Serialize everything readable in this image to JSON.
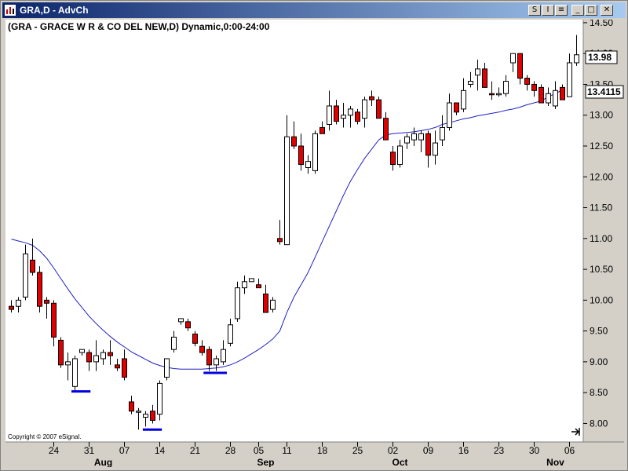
{
  "window": {
    "title": "GRA,D - AdvCh",
    "buttons": [
      {
        "name": "symbol-sync-button",
        "glyph": "S"
      },
      {
        "name": "interval-sync-button",
        "glyph": "I"
      },
      {
        "name": "link-button",
        "glyph": "≡"
      },
      {
        "name": "minimize-button",
        "glyph": "_"
      },
      {
        "name": "maximize-button",
        "glyph": "□"
      },
      {
        "name": "close-button",
        "glyph": "✕"
      }
    ]
  },
  "chart_data": {
    "type": "candlestick",
    "title": "(GRA - GRACE W R & CO DEL NEW,D) Dynamic,0:00-24:00",
    "copyright": "Copyright © 2007 eSignal.",
    "ylim": [
      7.7,
      14.55
    ],
    "yticks": [
      "14.50",
      "14.00",
      "13.50",
      "13.00",
      "12.50",
      "12.00",
      "11.50",
      "11.00",
      "10.50",
      "10.00",
      "9.50",
      "9.00",
      "8.50",
      "8.00"
    ],
    "last_price_label": "13.98",
    "ma_value_label": "13.4115",
    "xticks": [
      {
        "label": "24",
        "i": 6
      },
      {
        "label": "31",
        "i": 11
      },
      {
        "label": "07",
        "i": 16
      },
      {
        "label": "14",
        "i": 21
      },
      {
        "label": "21",
        "i": 26
      },
      {
        "label": "28",
        "i": 31
      },
      {
        "label": "05",
        "i": 35
      },
      {
        "label": "11",
        "i": 39
      },
      {
        "label": "18",
        "i": 44
      },
      {
        "label": "25",
        "i": 49
      },
      {
        "label": "02",
        "i": 54
      },
      {
        "label": "09",
        "i": 59
      },
      {
        "label": "16",
        "i": 64
      },
      {
        "label": "23",
        "i": 69
      },
      {
        "label": "30",
        "i": 74
      },
      {
        "label": "06",
        "i": 79
      }
    ],
    "months": [
      {
        "label": "Aug",
        "i": 13
      },
      {
        "label": "Sep",
        "i": 36
      },
      {
        "label": "Oct",
        "i": 55
      },
      {
        "label": "Nov",
        "i": 77
      }
    ],
    "candles": [
      [
        9.85,
        10.0,
        9.8,
        9.9,
        "down"
      ],
      [
        9.9,
        10.05,
        9.8,
        10.0,
        "up"
      ],
      [
        10.05,
        10.9,
        10.0,
        10.75,
        "up"
      ],
      [
        10.65,
        11.0,
        10.4,
        10.45,
        "down"
      ],
      [
        10.45,
        10.55,
        9.8,
        9.9,
        "down"
      ],
      [
        10.0,
        10.05,
        9.7,
        9.95,
        "down"
      ],
      [
        9.95,
        10.0,
        9.25,
        9.4,
        "down"
      ],
      [
        9.35,
        9.4,
        8.9,
        8.95,
        "down"
      ],
      [
        9.0,
        9.15,
        8.7,
        8.95,
        "up"
      ],
      [
        8.6,
        9.1,
        8.5,
        9.05,
        "up"
      ],
      [
        9.15,
        9.2,
        9.1,
        9.2,
        "up"
      ],
      [
        9.15,
        9.2,
        8.85,
        9.0,
        "down"
      ],
      [
        9.0,
        9.35,
        8.85,
        9.1,
        "up"
      ],
      [
        9.05,
        9.2,
        8.95,
        9.15,
        "up"
      ],
      [
        9.15,
        9.35,
        8.95,
        9.1,
        "down"
      ],
      [
        8.95,
        9.05,
        8.85,
        8.9,
        "down"
      ],
      [
        9.05,
        9.2,
        8.7,
        8.75,
        "down"
      ],
      [
        8.35,
        8.45,
        8.15,
        8.2,
        "down"
      ],
      [
        8.2,
        8.25,
        7.9,
        8.2,
        "up"
      ],
      [
        8.15,
        8.2,
        7.95,
        8.1,
        "up"
      ],
      [
        8.2,
        8.3,
        8.0,
        8.05,
        "down"
      ],
      [
        8.15,
        8.7,
        8.05,
        8.65,
        "up"
      ],
      [
        8.75,
        9.05,
        8.7,
        9.05,
        "up"
      ],
      [
        9.2,
        9.5,
        9.15,
        9.4,
        "up"
      ],
      [
        9.65,
        9.7,
        9.6,
        9.7,
        "up"
      ],
      [
        9.65,
        9.7,
        9.5,
        9.55,
        "down"
      ],
      [
        9.45,
        9.5,
        9.25,
        9.3,
        "down"
      ],
      [
        9.25,
        9.35,
        9.1,
        9.15,
        "down"
      ],
      [
        9.2,
        9.25,
        8.85,
        8.95,
        "down"
      ],
      [
        8.95,
        9.1,
        8.85,
        9.05,
        "up"
      ],
      [
        9.0,
        9.35,
        8.95,
        9.2,
        "up"
      ],
      [
        9.3,
        9.7,
        9.25,
        9.6,
        "up"
      ],
      [
        9.7,
        10.3,
        9.65,
        10.2,
        "up"
      ],
      [
        10.2,
        10.4,
        10.1,
        10.3,
        "up"
      ],
      [
        10.3,
        10.35,
        10.3,
        10.35,
        "up"
      ],
      [
        10.25,
        10.35,
        10.2,
        10.2,
        "down"
      ],
      [
        10.1,
        10.25,
        9.8,
        9.8,
        "down"
      ],
      [
        9.85,
        10.05,
        9.8,
        10.0,
        "up"
      ],
      [
        11.0,
        11.3,
        10.9,
        10.95,
        "down"
      ],
      [
        10.9,
        13.0,
        10.9,
        12.65,
        "up"
      ],
      [
        12.65,
        12.9,
        12.45,
        12.5,
        "down"
      ],
      [
        12.5,
        12.7,
        12.1,
        12.2,
        "down"
      ],
      [
        12.15,
        12.35,
        12.05,
        12.25,
        "up"
      ],
      [
        12.1,
        12.75,
        12.05,
        12.7,
        "up"
      ],
      [
        12.8,
        12.9,
        12.7,
        12.7,
        "down"
      ],
      [
        12.85,
        13.4,
        12.75,
        13.15,
        "up"
      ],
      [
        13.15,
        13.25,
        12.85,
        12.9,
        "down"
      ],
      [
        12.95,
        13.2,
        12.8,
        13.0,
        "up"
      ],
      [
        13.0,
        13.15,
        12.8,
        13.1,
        "up"
      ],
      [
        13.05,
        13.1,
        12.85,
        12.9,
        "down"
      ],
      [
        12.95,
        13.3,
        12.8,
        13.25,
        "up"
      ],
      [
        13.3,
        13.4,
        13.15,
        13.25,
        "down"
      ],
      [
        13.25,
        13.3,
        12.95,
        12.95,
        "down"
      ],
      [
        12.95,
        13.05,
        12.6,
        12.6,
        "down"
      ],
      [
        12.4,
        12.5,
        12.1,
        12.2,
        "down"
      ],
      [
        12.2,
        12.6,
        12.15,
        12.5,
        "up"
      ],
      [
        12.55,
        12.7,
        12.45,
        12.65,
        "up"
      ],
      [
        12.6,
        12.8,
        12.5,
        12.7,
        "up"
      ],
      [
        12.6,
        12.75,
        12.4,
        12.7,
        "up"
      ],
      [
        12.7,
        12.75,
        12.15,
        12.35,
        "down"
      ],
      [
        12.35,
        12.75,
        12.2,
        12.55,
        "up"
      ],
      [
        12.6,
        13.0,
        12.5,
        12.8,
        "up"
      ],
      [
        12.8,
        13.35,
        12.75,
        13.2,
        "up"
      ],
      [
        13.2,
        13.2,
        13.0,
        13.05,
        "down"
      ],
      [
        13.1,
        13.6,
        13.05,
        13.4,
        "up"
      ],
      [
        13.5,
        13.7,
        13.45,
        13.55,
        "up"
      ],
      [
        13.65,
        13.9,
        13.4,
        13.75,
        "up"
      ],
      [
        13.75,
        13.85,
        13.45,
        13.45,
        "down"
      ],
      [
        13.35,
        13.55,
        13.25,
        13.35,
        "down"
      ],
      [
        13.35,
        13.45,
        13.3,
        13.35,
        "up"
      ],
      [
        13.35,
        13.65,
        13.3,
        13.55,
        "up"
      ],
      [
        13.85,
        14.0,
        13.7,
        14.0,
        "up"
      ],
      [
        14.0,
        14.0,
        13.5,
        13.6,
        "down"
      ],
      [
        13.6,
        13.65,
        13.4,
        13.5,
        "down"
      ],
      [
        13.5,
        13.55,
        13.3,
        13.4,
        "down"
      ],
      [
        13.45,
        13.5,
        13.2,
        13.2,
        "down"
      ],
      [
        13.2,
        13.45,
        13.15,
        13.35,
        "up"
      ],
      [
        13.4,
        13.55,
        13.1,
        13.15,
        "up"
      ],
      [
        13.45,
        13.5,
        13.25,
        13.25,
        "down"
      ],
      [
        13.3,
        14.0,
        13.3,
        13.85,
        "up"
      ],
      [
        13.85,
        14.3,
        13.8,
        13.98,
        "up"
      ]
    ],
    "moving_average": [
      10.99,
      10.96,
      10.93,
      10.89,
      10.8,
      10.68,
      10.52,
      10.35,
      10.18,
      10.02,
      9.88,
      9.74,
      9.62,
      9.51,
      9.41,
      9.32,
      9.24,
      9.16,
      9.1,
      9.04,
      8.98,
      8.94,
      8.91,
      8.89,
      8.88,
      8.88,
      8.88,
      8.88,
      8.89,
      8.9,
      8.92,
      8.95,
      9.0,
      9.06,
      9.13,
      9.2,
      9.28,
      9.37,
      9.5,
      9.8,
      10.05,
      10.25,
      10.45,
      10.7,
      10.95,
      11.2,
      11.45,
      11.7,
      11.93,
      12.12,
      12.3,
      12.45,
      12.6,
      12.68,
      12.7,
      12.71,
      12.72,
      12.73,
      12.75,
      12.77,
      12.8,
      12.85,
      12.88,
      12.91,
      12.94,
      12.96,
      12.99,
      13.01,
      13.03,
      13.05,
      13.08,
      13.1,
      13.13,
      13.17,
      13.2,
      13.23,
      13.3,
      13.35,
      13.41
    ],
    "annotations": [
      {
        "name": "support-line-1",
        "i0": 8.5,
        "i1": 11.2,
        "y": 8.52
      },
      {
        "name": "support-line-2",
        "i0": 18.6,
        "i1": 21.3,
        "y": 7.9
      },
      {
        "name": "support-line-3",
        "i0": 27.2,
        "i1": 30.5,
        "y": 8.82
      }
    ]
  }
}
